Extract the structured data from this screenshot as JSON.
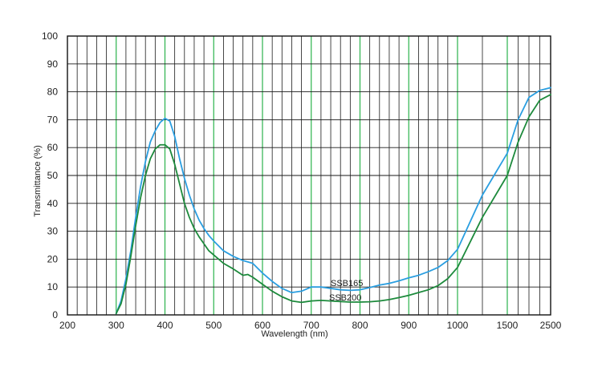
{
  "chart_data": {
    "type": "line",
    "title": "",
    "xlabel": "Wavelength (nm)",
    "ylabel": "Transmittance (%)",
    "ylim": [
      0,
      100
    ],
    "grid": true,
    "legend": "none",
    "x_ticks": [
      {
        "value": 200,
        "label": "200"
      },
      {
        "value": 300,
        "label": "300"
      },
      {
        "value": 400,
        "label": "400"
      },
      {
        "value": 500,
        "label": "500"
      },
      {
        "value": 600,
        "label": "600"
      },
      {
        "value": 700,
        "label": "700"
      },
      {
        "value": 800,
        "label": "800"
      },
      {
        "value": 900,
        "label": "900"
      },
      {
        "value": 1000,
        "label": "1000"
      },
      {
        "value": 1500,
        "label": "1500"
      },
      {
        "value": 2500,
        "label": "2500"
      }
    ],
    "x_minor_ticks": [
      220,
      240,
      260,
      280,
      320,
      340,
      360,
      380,
      420,
      440,
      460,
      480,
      520,
      540,
      560,
      580,
      620,
      640,
      660,
      680,
      720,
      740,
      760,
      780,
      820,
      840,
      860,
      880,
      920,
      940,
      960,
      980,
      1250,
      1750,
      2000,
      2250
    ],
    "y_ticks": [
      0,
      10,
      20,
      30,
      40,
      50,
      60,
      70,
      80,
      90,
      100
    ],
    "colors": {
      "grid_major": "#1a1a1a",
      "grid_minor": "#1a1a1a",
      "grid_highlight": "#2bb24c",
      "axis": "#111111"
    },
    "series": [
      {
        "name": "SSB165",
        "color": "#2a9ee0",
        "points": [
          [
            300,
            0.5
          ],
          [
            310,
            5
          ],
          [
            320,
            13
          ],
          [
            330,
            23
          ],
          [
            340,
            35
          ],
          [
            350,
            46
          ],
          [
            360,
            55
          ],
          [
            370,
            62
          ],
          [
            380,
            66
          ],
          [
            390,
            69
          ],
          [
            400,
            70.5
          ],
          [
            410,
            69.5
          ],
          [
            420,
            64
          ],
          [
            430,
            56
          ],
          [
            440,
            49
          ],
          [
            450,
            43
          ],
          [
            460,
            38
          ],
          [
            470,
            34
          ],
          [
            480,
            31
          ],
          [
            490,
            28.5
          ],
          [
            500,
            26.5
          ],
          [
            520,
            23
          ],
          [
            540,
            21
          ],
          [
            560,
            19.5
          ],
          [
            580,
            18.5
          ],
          [
            600,
            15
          ],
          [
            620,
            12
          ],
          [
            640,
            9.5
          ],
          [
            660,
            8
          ],
          [
            680,
            8.5
          ],
          [
            700,
            10
          ],
          [
            720,
            10
          ],
          [
            740,
            9.5
          ],
          [
            760,
            9
          ],
          [
            780,
            8.8
          ],
          [
            800,
            9
          ],
          [
            820,
            9.8
          ],
          [
            840,
            10.7
          ],
          [
            860,
            11.3
          ],
          [
            880,
            12.2
          ],
          [
            900,
            13.3
          ],
          [
            920,
            14.2
          ],
          [
            940,
            15.5
          ],
          [
            960,
            17
          ],
          [
            980,
            19.5
          ],
          [
            1000,
            23.5
          ],
          [
            1250,
            43
          ],
          [
            1500,
            58
          ],
          [
            1750,
            70
          ],
          [
            2000,
            78
          ],
          [
            2250,
            80.5
          ],
          [
            2500,
            81.5
          ]
        ]
      },
      {
        "name": "SSB200",
        "color": "#1d8a3c",
        "points": [
          [
            300,
            0.5
          ],
          [
            310,
            4
          ],
          [
            320,
            11
          ],
          [
            330,
            21
          ],
          [
            340,
            32
          ],
          [
            350,
            42
          ],
          [
            360,
            50
          ],
          [
            370,
            56
          ],
          [
            380,
            59.5
          ],
          [
            390,
            61
          ],
          [
            400,
            61
          ],
          [
            410,
            59.5
          ],
          [
            420,
            54
          ],
          [
            430,
            47
          ],
          [
            440,
            40
          ],
          [
            450,
            35
          ],
          [
            460,
            31
          ],
          [
            470,
            28
          ],
          [
            480,
            25.5
          ],
          [
            490,
            23
          ],
          [
            500,
            21.5
          ],
          [
            520,
            18.5
          ],
          [
            540,
            16.5
          ],
          [
            560,
            14.2
          ],
          [
            570,
            14.5
          ],
          [
            580,
            13.5
          ],
          [
            600,
            11
          ],
          [
            620,
            8.5
          ],
          [
            640,
            6.5
          ],
          [
            660,
            5
          ],
          [
            680,
            4.5
          ],
          [
            700,
            5
          ],
          [
            720,
            5.2
          ],
          [
            740,
            5
          ],
          [
            760,
            4.8
          ],
          [
            780,
            4.6
          ],
          [
            800,
            4.6
          ],
          [
            820,
            4.7
          ],
          [
            840,
            5
          ],
          [
            860,
            5.5
          ],
          [
            880,
            6.2
          ],
          [
            900,
            7
          ],
          [
            920,
            8
          ],
          [
            940,
            9
          ],
          [
            960,
            10.5
          ],
          [
            980,
            13
          ],
          [
            1000,
            17
          ],
          [
            1250,
            35
          ],
          [
            1500,
            50
          ],
          [
            1750,
            62
          ],
          [
            2000,
            71
          ],
          [
            2250,
            77
          ],
          [
            2500,
            79
          ]
        ]
      }
    ]
  }
}
